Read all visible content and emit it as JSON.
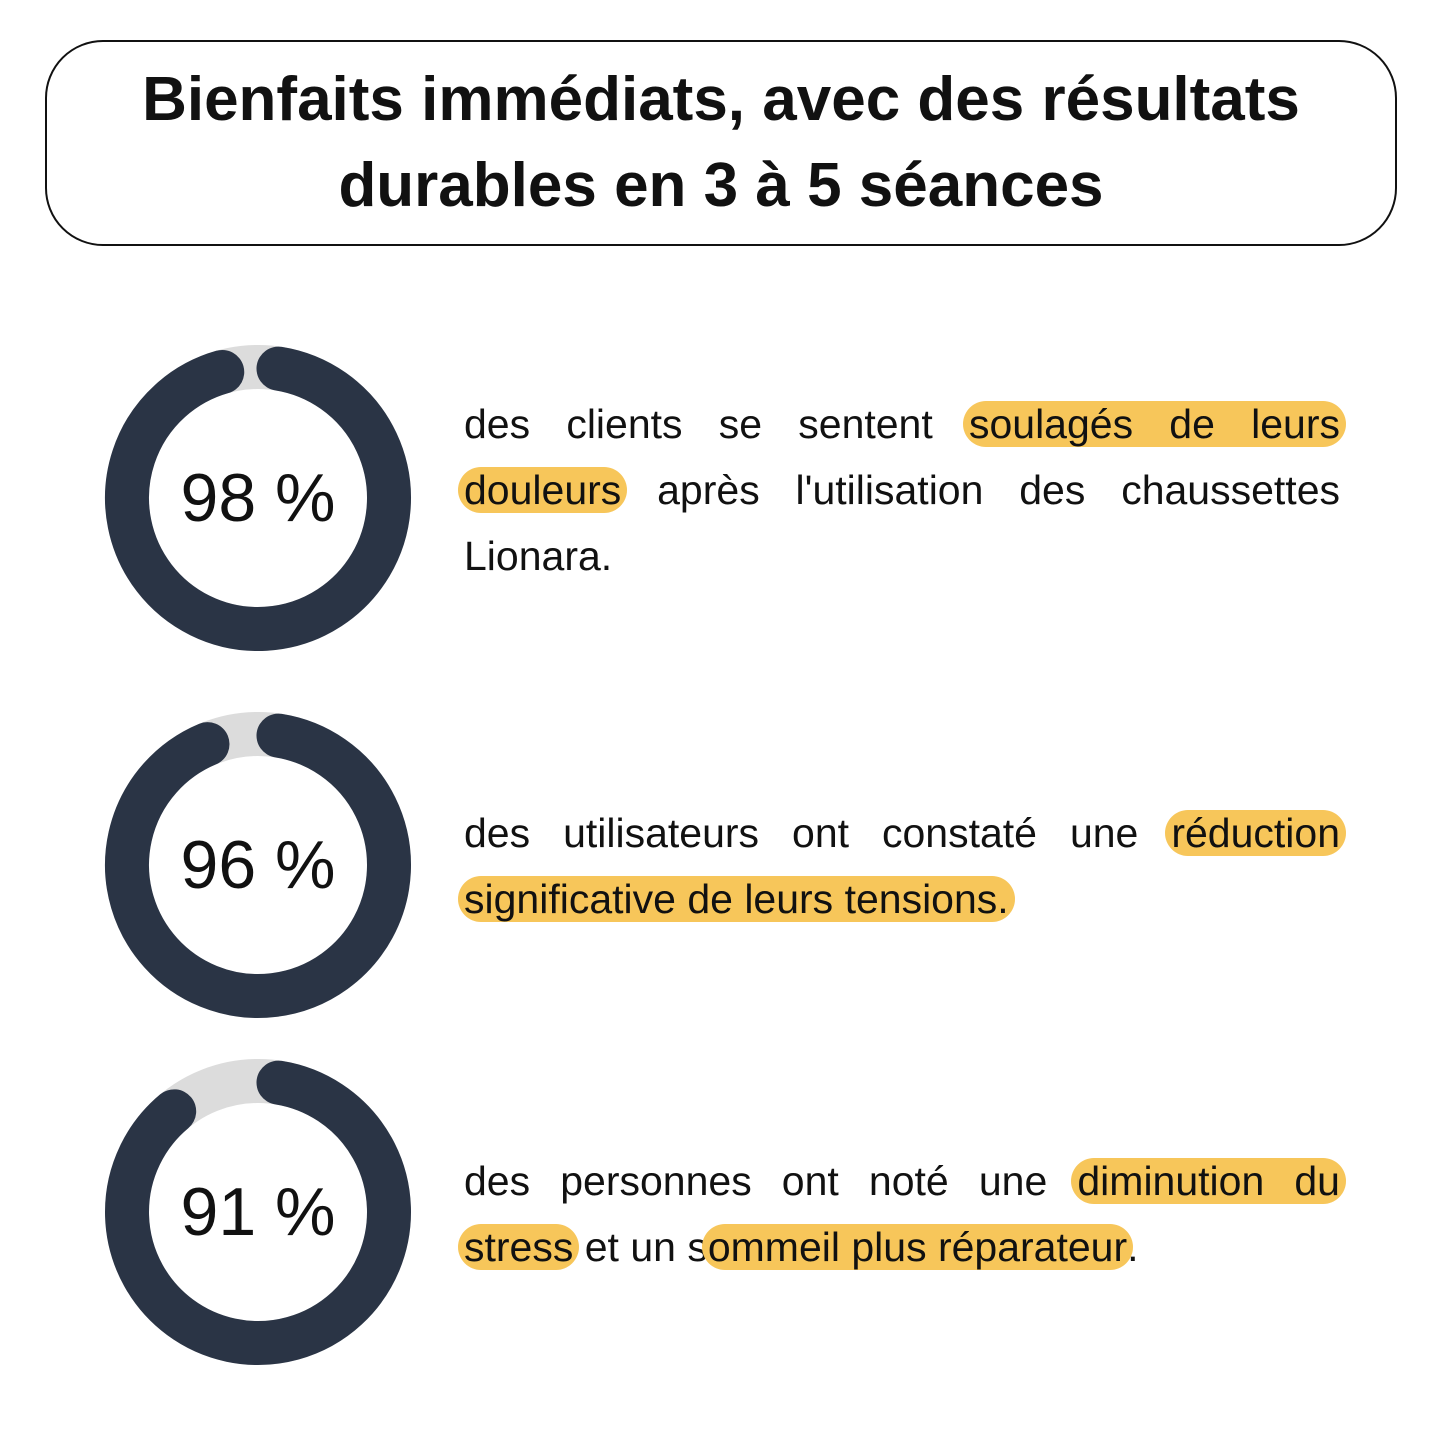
{
  "title": {
    "line1": "Bienfaits immédiats, avec des résultats",
    "line2": "durables en 3 à 5 séances"
  },
  "colors": {
    "ring": "#2a3445",
    "track": "#dcdcdc",
    "highlight": "#f7c65a",
    "text": "#111111"
  },
  "chart_data": [
    {
      "type": "donut",
      "value": 98,
      "label": "98 %",
      "text_parts": [
        {
          "text": "des clients se sentent ",
          "highlight": false
        },
        {
          "text": "soulagés de leurs douleurs",
          "highlight": true
        },
        {
          "text": " après l'utilisation des chaussettes Lionara.",
          "highlight": false
        }
      ]
    },
    {
      "type": "donut",
      "value": 96,
      "label": "96 %",
      "text_parts": [
        {
          "text": "des utilisateurs ont constaté une ",
          "highlight": false
        },
        {
          "text": "réduction significative de leurs tensions.",
          "highlight": true
        }
      ]
    },
    {
      "type": "donut",
      "value": 91,
      "label": "91 %",
      "text_parts": [
        {
          "text": "des personnes ont noté une ",
          "highlight": false
        },
        {
          "text": "diminution du stress",
          "highlight": true
        },
        {
          "text": " et un s",
          "highlight": false
        },
        {
          "text": "ommeil plus réparateur",
          "highlight": true
        },
        {
          "text": ".",
          "highlight": false
        }
      ]
    }
  ]
}
